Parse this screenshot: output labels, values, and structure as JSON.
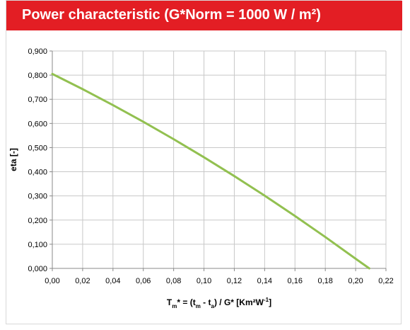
{
  "header": {
    "title": "Power characteristic (G*Norm = 1000 W / m²)"
  },
  "colors": {
    "header_bg": "#e31e24",
    "curve": "#92c050",
    "grid": "#c8c8c8",
    "axis": "#888888"
  },
  "chart_data": {
    "type": "line",
    "title": "",
    "ylabel": "eta [-]",
    "xlabel_parts": [
      "T",
      "m",
      "* = (t",
      "m",
      " - t",
      "a",
      ") / G* [Km²W",
      "-1",
      "]"
    ],
    "xlim": [
      0,
      0.22
    ],
    "ylim": [
      0,
      0.9
    ],
    "grid": true,
    "x_ticks": [
      0,
      0.02,
      0.04,
      0.06,
      0.08,
      0.1,
      0.12,
      0.14,
      0.16,
      0.18,
      0.2,
      0.22
    ],
    "y_ticks": [
      0,
      0.1,
      0.2,
      0.3,
      0.4,
      0.5,
      0.6,
      0.7,
      0.8,
      0.9
    ],
    "x_tick_labels": [
      "0,00",
      "0,02",
      "0,04",
      "0,06",
      "0,08",
      "0,10",
      "0,12",
      "0,14",
      "0,16",
      "0,18",
      "0,20",
      "0,22"
    ],
    "y_tick_labels": [
      "0,000",
      "0,100",
      "0,200",
      "0,300",
      "0,400",
      "0,500",
      "0,600",
      "0,700",
      "0,800",
      "0,900"
    ],
    "series": [
      {
        "x": [
          0,
          0.02,
          0.04,
          0.06,
          0.08,
          0.1,
          0.12,
          0.14,
          0.16,
          0.18,
          0.2,
          0.209
        ],
        "y": [
          0.805,
          0.742,
          0.676,
          0.607,
          0.535,
          0.46,
          0.382,
          0.301,
          0.217,
          0.13,
          0.04,
          0.0
        ]
      }
    ]
  }
}
